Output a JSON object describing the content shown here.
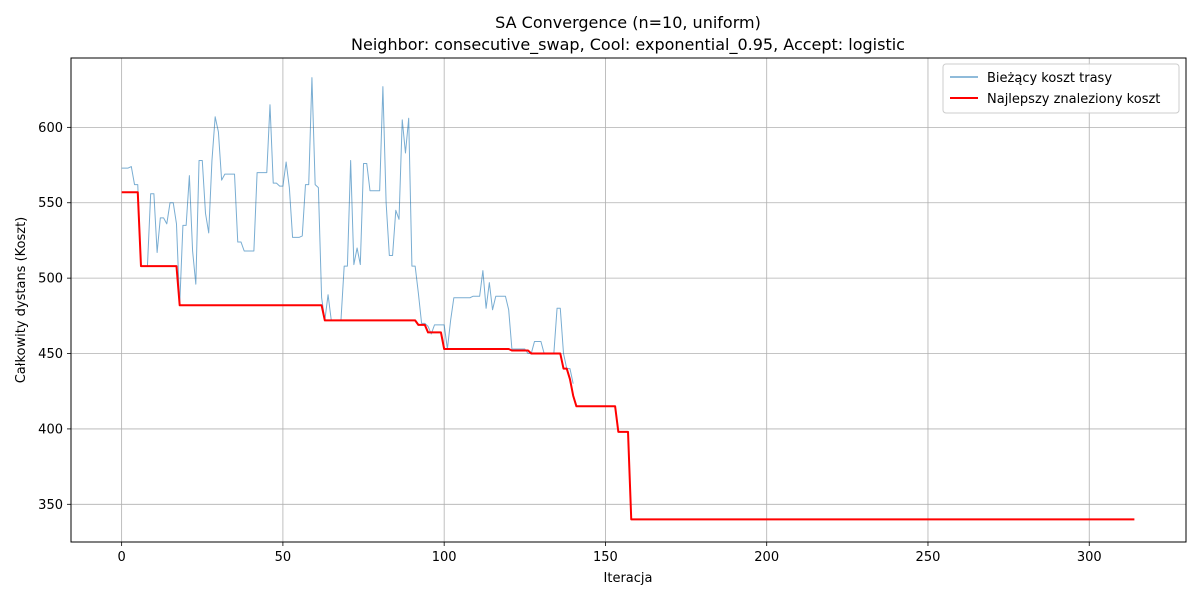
{
  "chart_data": {
    "type": "line",
    "title": "SA Convergence (n=10, uniform)",
    "subtitle": "Neighbor: consecutive_swap, Cool: exponential_0.95, Accept: logistic",
    "xlabel": "Iteracja",
    "ylabel": "Całkowity dystans (Koszt)",
    "xlim": [
      -15.7,
      330
    ],
    "ylim": [
      325,
      646
    ],
    "x_ticks": [
      0,
      50,
      100,
      150,
      200,
      250,
      300
    ],
    "y_ticks": [
      350,
      400,
      450,
      500,
      550,
      600
    ],
    "grid": true,
    "legend_position": "top-right",
    "series": [
      {
        "name": "Bieżący koszt trasy",
        "color": "#1f77b4",
        "style": "thin",
        "points": [
          [
            0,
            573
          ],
          [
            1,
            573
          ],
          [
            2,
            573
          ],
          [
            3,
            574
          ],
          [
            4,
            562
          ],
          [
            5,
            562
          ],
          [
            6,
            508
          ],
          [
            7,
            508
          ],
          [
            8,
            508
          ],
          [
            9,
            556
          ],
          [
            10,
            556
          ],
          [
            11,
            517
          ],
          [
            12,
            540
          ],
          [
            13,
            540
          ],
          [
            14,
            536
          ],
          [
            15,
            550
          ],
          [
            16,
            550
          ],
          [
            17,
            536
          ],
          [
            18,
            482
          ],
          [
            19,
            535
          ],
          [
            20,
            535
          ],
          [
            21,
            568
          ],
          [
            22,
            518
          ],
          [
            23,
            496
          ],
          [
            24,
            578
          ],
          [
            25,
            578
          ],
          [
            26,
            543
          ],
          [
            27,
            530
          ],
          [
            28,
            578
          ],
          [
            29,
            607
          ],
          [
            30,
            597
          ],
          [
            31,
            565
          ],
          [
            32,
            569
          ],
          [
            33,
            569
          ],
          [
            34,
            569
          ],
          [
            35,
            569
          ],
          [
            36,
            524
          ],
          [
            37,
            524
          ],
          [
            38,
            518
          ],
          [
            39,
            518
          ],
          [
            40,
            518
          ],
          [
            41,
            518
          ],
          [
            42,
            570
          ],
          [
            43,
            570
          ],
          [
            44,
            570
          ],
          [
            45,
            570
          ],
          [
            46,
            615
          ],
          [
            47,
            563
          ],
          [
            48,
            563
          ],
          [
            49,
            561
          ],
          [
            50,
            561
          ],
          [
            51,
            577
          ],
          [
            52,
            560
          ],
          [
            53,
            527
          ],
          [
            54,
            527
          ],
          [
            55,
            527
          ],
          [
            56,
            528
          ],
          [
            57,
            562
          ],
          [
            58,
            562
          ],
          [
            59,
            633
          ],
          [
            60,
            562
          ],
          [
            61,
            560
          ],
          [
            62,
            487
          ],
          [
            63,
            472
          ],
          [
            64,
            489
          ],
          [
            65,
            472
          ],
          [
            66,
            472
          ],
          [
            67,
            472
          ],
          [
            68,
            472
          ],
          [
            69,
            508
          ],
          [
            70,
            508
          ],
          [
            71,
            578
          ],
          [
            72,
            509
          ],
          [
            73,
            520
          ],
          [
            74,
            509
          ],
          [
            75,
            576
          ],
          [
            76,
            576
          ],
          [
            77,
            558
          ],
          [
            78,
            558
          ],
          [
            79,
            558
          ],
          [
            80,
            558
          ],
          [
            81,
            627
          ],
          [
            82,
            550
          ],
          [
            83,
            515
          ],
          [
            84,
            515
          ],
          [
            85,
            545
          ],
          [
            86,
            539
          ],
          [
            87,
            605
          ],
          [
            88,
            583
          ],
          [
            89,
            606
          ],
          [
            90,
            508
          ],
          [
            91,
            508
          ],
          [
            92,
            490
          ],
          [
            93,
            470
          ],
          [
            94,
            470
          ],
          [
            95,
            468
          ],
          [
            96,
            463
          ],
          [
            97,
            469
          ],
          [
            98,
            469
          ],
          [
            99,
            469
          ],
          [
            100,
            469
          ],
          [
            101,
            453
          ],
          [
            102,
            472
          ],
          [
            103,
            487
          ],
          [
            104,
            487
          ],
          [
            105,
            487
          ],
          [
            106,
            487
          ],
          [
            107,
            487
          ],
          [
            108,
            487
          ],
          [
            109,
            488
          ],
          [
            110,
            488
          ],
          [
            111,
            488
          ],
          [
            112,
            505
          ],
          [
            113,
            480
          ],
          [
            114,
            497
          ],
          [
            115,
            479
          ],
          [
            116,
            488
          ],
          [
            117,
            488
          ],
          [
            118,
            488
          ],
          [
            119,
            488
          ],
          [
            120,
            479
          ],
          [
            121,
            453
          ],
          [
            122,
            453
          ],
          [
            123,
            453
          ],
          [
            124,
            453
          ],
          [
            125,
            453
          ],
          [
            126,
            450
          ],
          [
            127,
            450
          ],
          [
            128,
            458
          ],
          [
            129,
            458
          ],
          [
            130,
            458
          ],
          [
            131,
            450
          ],
          [
            132,
            450
          ],
          [
            133,
            450
          ],
          [
            134,
            450
          ],
          [
            135,
            480
          ],
          [
            136,
            480
          ],
          [
            137,
            450
          ],
          [
            138,
            440
          ],
          [
            139,
            440
          ],
          [
            140,
            430
          ]
        ]
      },
      {
        "name": "Najlepszy znaleziony koszt",
        "color": "#ff0000",
        "style": "thick",
        "points": [
          [
            0,
            557
          ],
          [
            5,
            557
          ],
          [
            6,
            508
          ],
          [
            17,
            508
          ],
          [
            18,
            482
          ],
          [
            62,
            482
          ],
          [
            63,
            472
          ],
          [
            91,
            472
          ],
          [
            92,
            469
          ],
          [
            94,
            469
          ],
          [
            95,
            464
          ],
          [
            99,
            464
          ],
          [
            100,
            453
          ],
          [
            120,
            453
          ],
          [
            121,
            452
          ],
          [
            126,
            452
          ],
          [
            127,
            450
          ],
          [
            136,
            450
          ],
          [
            137,
            440
          ],
          [
            138,
            440
          ],
          [
            139,
            433
          ],
          [
            140,
            422
          ],
          [
            141,
            415
          ],
          [
            153,
            415
          ],
          [
            154,
            398
          ],
          [
            157,
            398
          ],
          [
            158,
            340
          ],
          [
            314,
            340
          ]
        ]
      }
    ]
  }
}
